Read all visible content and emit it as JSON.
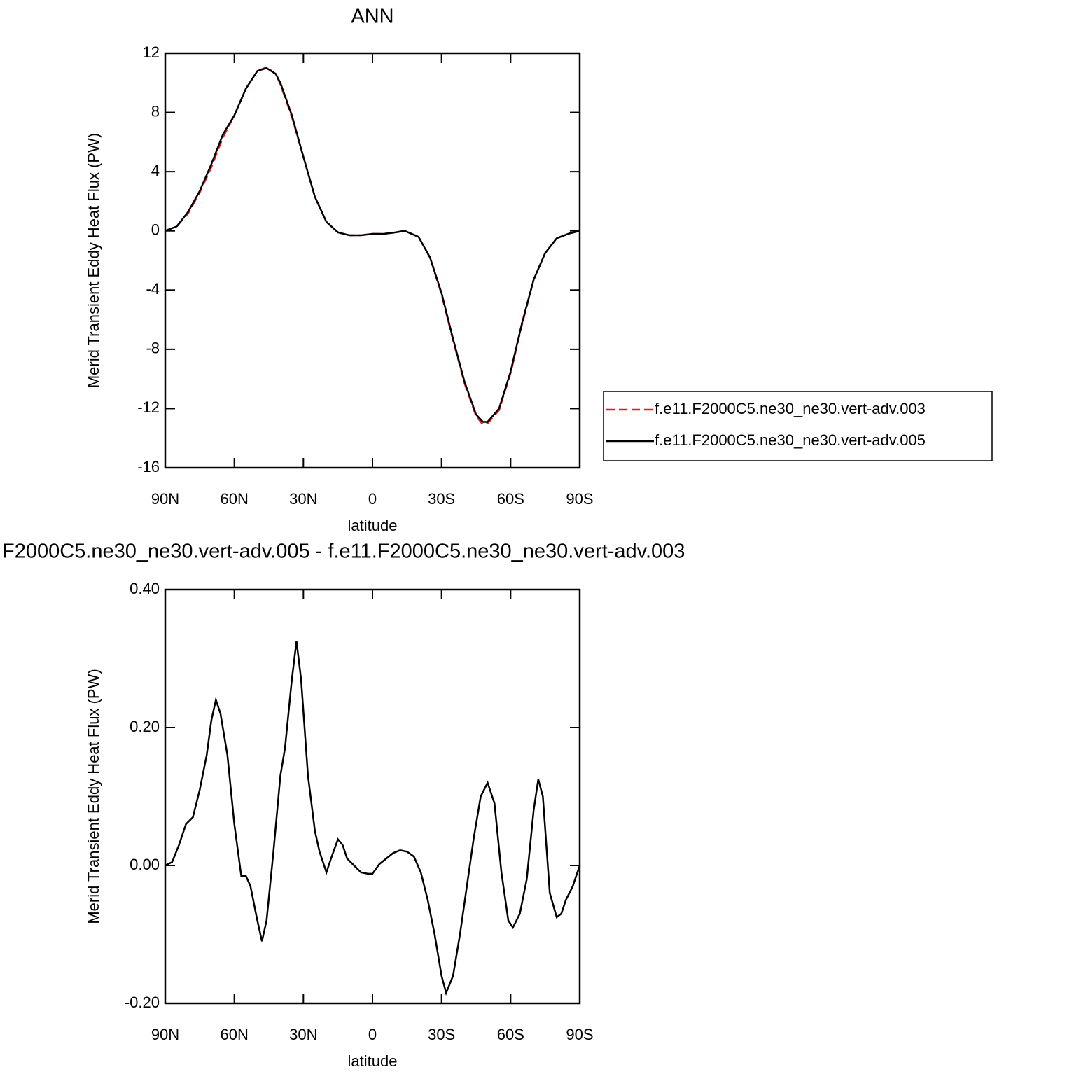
{
  "chart_data": [
    {
      "type": "line",
      "title": "ANN",
      "xlabel": "latitude",
      "ylabel": "Merid Transient Eddy Heat Flux (PW)",
      "x": [
        90,
        85,
        80,
        75,
        70,
        65,
        60,
        55,
        50,
        46,
        42,
        40,
        35,
        30,
        25,
        20,
        15,
        10,
        5,
        0,
        -5,
        -10,
        -14,
        -20,
        -25,
        -30,
        -35,
        -40,
        -45,
        -48,
        -50,
        -55,
        -60,
        -65,
        -70,
        -75,
        -80,
        -85,
        -90
      ],
      "series": [
        {
          "name": "f.e11.F2000C5.ne30_ne30.vert-adv.003",
          "color": "#e41a1c",
          "dash": true,
          "values": [
            0,
            0.3,
            1.2,
            2.6,
            4.3,
            6.3,
            7.8,
            9.6,
            10.8,
            11.05,
            10.6,
            9.9,
            7.7,
            5.0,
            2.3,
            0.6,
            -0.1,
            -0.3,
            -0.3,
            -0.2,
            -0.2,
            -0.1,
            0,
            -0.4,
            -1.8,
            -4.3,
            -7.4,
            -10.3,
            -12.5,
            -13.1,
            -13.0,
            -12.1,
            -9.6,
            -6.3,
            -3.3,
            -1.5,
            -0.5,
            -0.2,
            0
          ]
        },
        {
          "name": "f.e11.F2000C5.ne30_ne30.vert-adv.005",
          "color": "#000000",
          "dash": false,
          "values": [
            0,
            0.3,
            1.3,
            2.7,
            4.5,
            6.5,
            7.8,
            9.6,
            10.8,
            11.0,
            10.6,
            10.0,
            7.8,
            5.0,
            2.3,
            0.6,
            -0.1,
            -0.3,
            -0.3,
            -0.2,
            -0.2,
            -0.1,
            0,
            -0.4,
            -1.8,
            -4.2,
            -7.3,
            -10.2,
            -12.4,
            -12.9,
            -12.9,
            -12.0,
            -9.5,
            -6.2,
            -3.3,
            -1.5,
            -0.5,
            -0.2,
            0
          ]
        }
      ],
      "xlim": [
        90,
        -90
      ],
      "xticks": [
        {
          "value": 90,
          "label": "90N"
        },
        {
          "value": 60,
          "label": "60N"
        },
        {
          "value": 30,
          "label": "30N"
        },
        0,
        {
          "value": -30,
          "label": "30S"
        },
        {
          "value": -60,
          "label": "60S"
        },
        {
          "value": -90,
          "label": "90S"
        }
      ],
      "ylim": [
        -16,
        12
      ],
      "yticks": [
        -16,
        -12,
        -8,
        -4,
        0,
        4,
        8,
        12
      ],
      "legend": "right"
    },
    {
      "type": "line",
      "title": "F2000C5.ne30_ne30.vert-adv.005 - f.e11.F2000C5.ne30_ne30.vert-adv.003",
      "xlabel": "latitude",
      "ylabel": "Merid Transient Eddy Heat Flux (PW)",
      "x": [
        90,
        87,
        84,
        81,
        78,
        75,
        72,
        70,
        68,
        66,
        63,
        60,
        57,
        55,
        53,
        50,
        48,
        46,
        43,
        40,
        38,
        35,
        33,
        31,
        28,
        25,
        23,
        20,
        18,
        15,
        13,
        11,
        8,
        5,
        2,
        0,
        -3,
        -6,
        -9,
        -12,
        -15,
        -18,
        -21,
        -24,
        -27,
        -30,
        -32,
        -35,
        -38,
        -41,
        -44,
        -47,
        -50,
        -53,
        -56,
        -59,
        -61,
        -64,
        -67,
        -70,
        -72,
        -74,
        -77,
        -80,
        -82,
        -84,
        -87,
        -90
      ],
      "series": [
        {
          "color": "#000000",
          "dash": false,
          "values": [
            0,
            0.005,
            0.03,
            0.06,
            0.07,
            0.11,
            0.16,
            0.21,
            0.24,
            0.22,
            0.16,
            0.06,
            -0.015,
            -0.015,
            -0.03,
            -0.08,
            -0.11,
            -0.08,
            0.02,
            0.13,
            0.17,
            0.27,
            0.325,
            0.27,
            0.13,
            0.05,
            0.02,
            -0.01,
            0.01,
            0.038,
            0.03,
            0.01,
            0,
            -0.01,
            -0.012,
            -0.012,
            0.002,
            0.01,
            0.018,
            0.022,
            0.02,
            0.013,
            -0.01,
            -0.05,
            -0.1,
            -0.16,
            -0.185,
            -0.16,
            -0.1,
            -0.03,
            0.04,
            0.1,
            0.12,
            0.09,
            -0.01,
            -0.08,
            -0.09,
            -0.07,
            -0.02,
            0.08,
            0.125,
            0.1,
            -0.04,
            -0.075,
            -0.07,
            -0.05,
            -0.03,
            0
          ]
        }
      ],
      "xlim": [
        90,
        -90
      ],
      "xticks": [
        {
          "value": 90,
          "label": "90N"
        },
        {
          "value": 60,
          "label": "60N"
        },
        {
          "value": 30,
          "label": "30N"
        },
        0,
        {
          "value": -30,
          "label": "30S"
        },
        {
          "value": -60,
          "label": "60S"
        },
        {
          "value": -90,
          "label": "90S"
        }
      ],
      "ylim": [
        -0.2,
        0.4
      ],
      "yticks": [
        {
          "value": -0.2,
          "label": "-0.20"
        },
        {
          "value": 0,
          "label": "0.00"
        },
        {
          "value": 0.2,
          "label": "0.20"
        },
        {
          "value": 0.4,
          "label": "0.40"
        }
      ]
    }
  ]
}
